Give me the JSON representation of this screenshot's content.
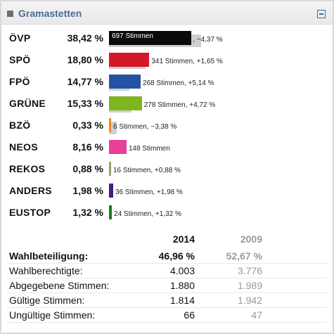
{
  "header": {
    "title": "Gramastetten"
  },
  "results": [
    {
      "party": "ÖVP",
      "pct": "38,42 %",
      "label": "697 Stimmen",
      "change": ", −4,37 %",
      "color": "#0a0a0a",
      "share": 38.42,
      "prev_share": 42.79,
      "label_inside": true
    },
    {
      "party": "SPÖ",
      "pct": "18,80 %",
      "label": "341 Stimmen, +1,65 %",
      "color": "#d5172a",
      "share": 18.8,
      "prev_share": 17.15,
      "label_inside": false
    },
    {
      "party": "FPÖ",
      "pct": "14,77 %",
      "label": "268 Stimmen, +5,14 %",
      "color": "#2453a5",
      "share": 14.77,
      "prev_share": 9.63,
      "label_inside": false
    },
    {
      "party": "GRÜNE",
      "pct": "15,33 %",
      "label": "278 Stimmen, +4,72 %",
      "color": "#7fb51d",
      "share": 15.33,
      "prev_share": 10.61,
      "label_inside": false
    },
    {
      "party": "BZÖ",
      "pct": "0,33 %",
      "label": "6 Stimmen, −3,38 %",
      "color": "#f08a1c",
      "share": 0.33,
      "prev_share": 3.71,
      "label_inside": false
    },
    {
      "party": "NEOS",
      "pct": "8,16 %",
      "label": "148 Stimmen",
      "color": "#e8409a",
      "share": 8.16,
      "prev_share": 0,
      "label_inside": false
    },
    {
      "party": "REKOS",
      "pct": "0,88 %",
      "label": "16 Stimmen, +0,88 %",
      "color": "#a09a6a",
      "share": 0.88,
      "prev_share": 0,
      "label_inside": false
    },
    {
      "party": "ANDERS",
      "pct": "1,98 %",
      "label": "36 Stimmen, +1,98 %",
      "color": "#4a1a8a",
      "share": 1.98,
      "prev_share": 0,
      "label_inside": false
    },
    {
      "party": "EUSTOP",
      "pct": "1,32 %",
      "label": "24 Stimmen, +1,32 %",
      "color": "#1f7a1f",
      "share": 1.32,
      "prev_share": 0,
      "label_inside": false
    }
  ],
  "stats": {
    "year_current": "2014",
    "year_previous": "2009",
    "rows": [
      {
        "label": "Wahlbeteiligung:",
        "v2014": "46,96 %",
        "v2009": "52,67 %",
        "bold": true
      },
      {
        "label": "Wahlberechtigte:",
        "v2014": "4.003",
        "v2009": "3.776",
        "bold": false
      },
      {
        "label": "Abgegebene Stimmen:",
        "v2014": "1.880",
        "v2009": "1.989",
        "bold": false
      },
      {
        "label": "Gültige Stimmen:",
        "v2014": "1.814",
        "v2009": "1.942",
        "bold": false
      },
      {
        "label": "Ungültige Stimmen:",
        "v2014": "66",
        "v2009": "47",
        "bold": false
      }
    ]
  }
}
